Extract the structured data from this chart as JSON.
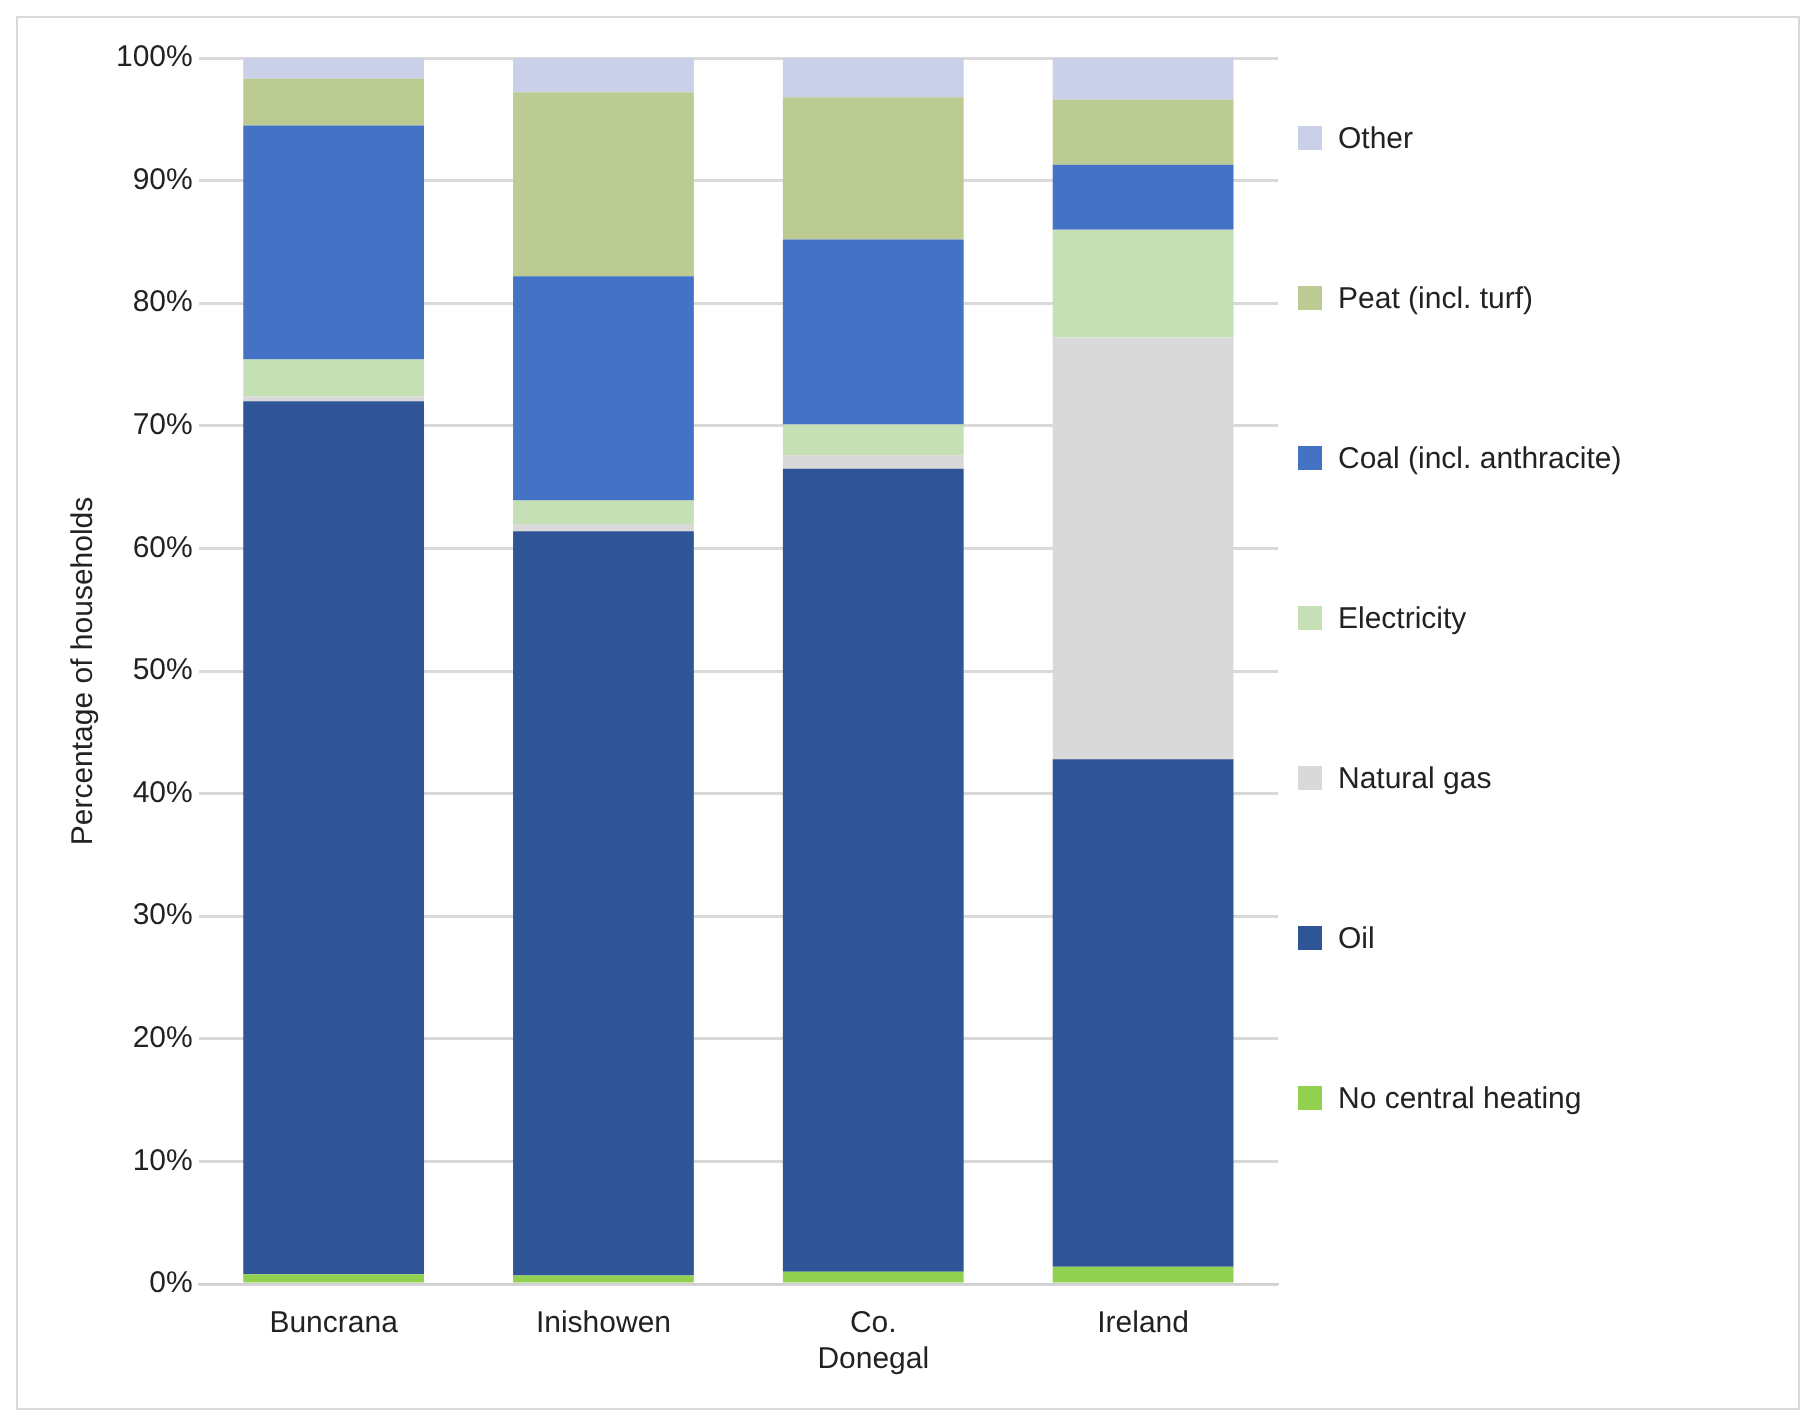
{
  "chart_data": {
    "type": "bar",
    "stacked": true,
    "ylabel": "Percentage of households",
    "categories": [
      "Buncrana",
      "Inishowen",
      "Co. Donegal",
      "Ireland"
    ],
    "series": [
      {
        "name": "No central heating",
        "color": "#92d050",
        "values": [
          0.8,
          0.7,
          1.0,
          1.4
        ]
      },
      {
        "name": "Oil",
        "color": "#2f5597",
        "values": [
          71.2,
          60.7,
          65.5,
          41.4
        ]
      },
      {
        "name": "Natural gas",
        "color": "#d9d9d9",
        "values": [
          0.4,
          0.6,
          1.1,
          34.4
        ]
      },
      {
        "name": "Electricity",
        "color": "#c5e0b4",
        "values": [
          3.0,
          1.9,
          2.5,
          8.8
        ]
      },
      {
        "name": "Coal (incl. anthracite)",
        "color": "#4472c4",
        "values": [
          19.1,
          18.3,
          15.1,
          5.3
        ]
      },
      {
        "name": "Peat (incl. turf)",
        "color": "#bccb92",
        "values": [
          3.8,
          15.0,
          11.6,
          5.3
        ]
      },
      {
        "name": "Other",
        "color": "#c9d0e8",
        "values": [
          1.7,
          2.8,
          3.2,
          3.4
        ]
      }
    ],
    "ylim": [
      0,
      100
    ],
    "yticks": [
      {
        "value": 0,
        "label": "0%"
      },
      {
        "value": 10,
        "label": "10%"
      },
      {
        "value": 20,
        "label": "20%"
      },
      {
        "value": 30,
        "label": "30%"
      },
      {
        "value": 40,
        "label": "40%"
      },
      {
        "value": 50,
        "label": "50%"
      },
      {
        "value": 60,
        "label": "60%"
      },
      {
        "value": 70,
        "label": "70%"
      },
      {
        "value": 80,
        "label": "80%"
      },
      {
        "value": 90,
        "label": "90%"
      },
      {
        "value": 100,
        "label": "100%"
      }
    ],
    "grid": "y",
    "legend": "right"
  }
}
